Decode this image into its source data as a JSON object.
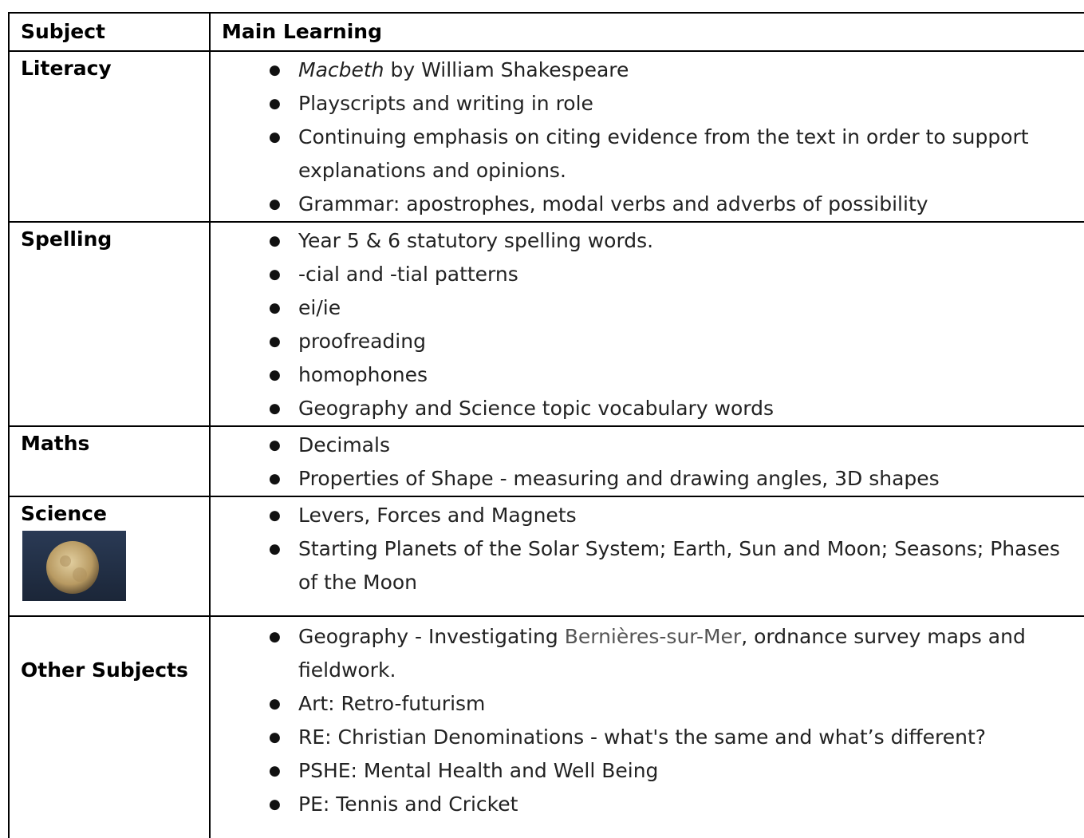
{
  "table": {
    "header": [
      "Subject",
      "Main Learning"
    ],
    "rows": [
      {
        "subject": "Literacy",
        "items": [
          {
            "em": "Macbeth",
            "text": "by William Shakespeare"
          },
          "Playscripts and writing in role",
          "Continuing emphasis on citing evidence from the text in order to support explanations and opinions.",
          "Grammar: apostrophes, modal verbs and adverbs of possibility"
        ]
      },
      {
        "subject": "Spelling",
        "items": [
          "Year 5 & 6 statutory spelling words.",
          "-cial and -tial patterns",
          "ei/ie",
          "proofreading",
          "homophones",
          "Geography and Science topic vocabulary words"
        ]
      },
      {
        "subject": "Maths",
        "items": [
          "Decimals",
          "Properties of Shape - measuring and drawing angles, 3D shapes"
        ]
      },
      {
        "subject": "Science",
        "items": [
          "Levers, Forces and Magnets",
          "Starting Planets of the Solar System; Earth, Sun and Moon; Seasons; Phases of the Moon"
        ]
      },
      {
        "subject": "Other Subjects",
        "items": [
          {
            "text": "Geography - Investigating",
            "place": "Bernières-sur-Mer",
            "rest": ", ordnance survey maps and fieldwork."
          },
          "Art: Retro-futurism",
          "RE: Christian Denominations - what's the same and what’s different?",
          "PSHE: Mental Health and Well Being",
          "PE: Tennis and Cricket"
        ]
      }
    ]
  }
}
